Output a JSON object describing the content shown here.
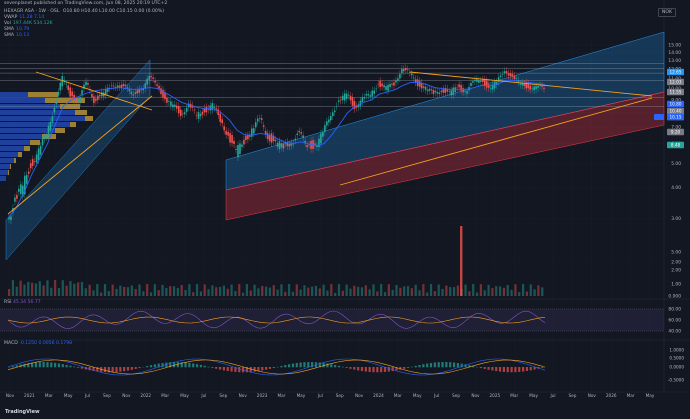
{
  "header": {
    "published": "sevenplanet published on TradingView.com, Jun 08, 2025 20:19 UTC+2",
    "symbol": "HEXAGR ASA · 1W · OSL",
    "ohlc": "O10.80 H10.40 L10.00 C10.15 0.00 (0.00%)",
    "vwap_label": "VWAP",
    "vwap_values": "11.28  7.14",
    "vol_label": "Vol",
    "vol_values": "197.44K  534.12K",
    "sma1_label": "SMA",
    "sma1_value": "10.79",
    "sma2_label": "SMA",
    "sma2_value": "10.13",
    "currency": "NOK",
    "brand": "TradingView"
  },
  "rsi": {
    "label": "RSI",
    "values": "45.34  56.77"
  },
  "macd": {
    "label": "MACD",
    "values": "-0.1250  0.0056  0.1798"
  },
  "colors": {
    "background": "#131722",
    "up": "#26a69a",
    "down": "#ef5350",
    "sma_blue": "#2962ff",
    "trend_orange": "#f7a21b",
    "channel_blue": "#2196f3",
    "channel_red": "#f23645",
    "profile_blue": "#2962ff",
    "profile_yellow": "#f7c744",
    "rsi": "#7e57c2",
    "rsi_signal": "#f7a21b"
  },
  "chart_data": {
    "type": "candlestick",
    "y_axis": {
      "min": 2.0,
      "max": 16.0,
      "scale": "log",
      "ticks": [
        "15.00",
        "14.00",
        "13.00",
        "12.00",
        "11.00",
        "10.00",
        "9.00",
        "8.00",
        "7.00",
        "6.00",
        "5.00",
        "4.00",
        "3.00",
        "2.00"
      ]
    },
    "volume_axis": {
      "ticks": [
        "5.00",
        "2.00",
        "1.00",
        "0.000"
      ]
    },
    "x_ticks": [
      "Nov",
      "2021",
      "Mar",
      "May",
      "Jul",
      "Sep",
      "Nov",
      "2022",
      "Mar",
      "May",
      "Jul",
      "Sep",
      "Nov",
      "2023",
      "Mar",
      "May",
      "Jul",
      "Sep",
      "Nov",
      "2024",
      "Mar",
      "May",
      "Jul",
      "Sep",
      "Nov",
      "2025",
      "Mar",
      "May",
      "Jul",
      "Sep",
      "Nov",
      "2026",
      "Mar",
      "May"
    ],
    "price_tags": [
      {
        "value": "12.65",
        "color": "#2196f3"
      },
      {
        "value": "12.03",
        "color": "#787b86"
      },
      {
        "value": "11.55",
        "color": "#787b86"
      },
      {
        "value": "10.80",
        "color": "#2962ff"
      },
      {
        "value": "10.40",
        "color": "#787b86"
      },
      {
        "value": "10.15",
        "color": "#787b86"
      },
      {
        "value": "10.15",
        "color": "#2962ff"
      },
      {
        "value": "9.20",
        "color": "#787b86"
      },
      {
        "value": "8.48",
        "color": "#26a69a"
      }
    ],
    "close_path": [
      3.1,
      3.5,
      4.0,
      5.0,
      5.5,
      6.5,
      8.5,
      11.0,
      9.5,
      9.0,
      10.5,
      9.0,
      9.5,
      10.0,
      10.5,
      10.0,
      9.5,
      10.0,
      11.0,
      10.5,
      9.0,
      8.5,
      8.0,
      8.5,
      7.8,
      8.2,
      8.5,
      7.5,
      6.5,
      5.5,
      6.2,
      6.8,
      7.5,
      6.5,
      6.0,
      5.8,
      6.2,
      6.5,
      6.0,
      5.9,
      6.5,
      8.0,
      8.8,
      9.5,
      8.5,
      9.0,
      9.5,
      10.5,
      10.0,
      10.5,
      12.0,
      11.5,
      10.5,
      10.0,
      9.5,
      10.0,
      9.5,
      10.2,
      9.8,
      10.5,
      11.0,
      10.0,
      10.5,
      12.0,
      11.0,
      10.5,
      10.2,
      10.0,
      10.15
    ],
    "sma_path": [
      3.0,
      3.3,
      3.8,
      4.5,
      5.2,
      6.0,
      7.2,
      8.5,
      9.0,
      9.3,
      9.6,
      9.8,
      9.9,
      10.0,
      10.1,
      10.0,
      9.9,
      10.0,
      10.1,
      10.0,
      9.6,
      9.2,
      8.8,
      8.6,
      8.4,
      8.3,
      8.3,
      8.0,
      7.5,
      6.8,
      6.5,
      6.5,
      6.6,
      6.5,
      6.3,
      6.1,
      6.0,
      6.1,
      6.0,
      5.9,
      6.0,
      6.5,
      7.2,
      8.0,
      8.5,
      8.8,
      9.0,
      9.5,
      9.7,
      9.9,
      10.3,
      10.6,
      10.6,
      10.4,
      10.1,
      10.0,
      9.9,
      9.9,
      9.9,
      10.1,
      10.3,
      10.3,
      10.4,
      10.8,
      10.8,
      10.7,
      10.6,
      10.5,
      10.4
    ],
    "volume_spike": {
      "index": 50,
      "value": 5.0
    },
    "rsi_axis": {
      "ticks": [
        "80.00",
        "60.00",
        "40.00"
      ]
    },
    "macd_axis": {
      "ticks": [
        "1.0000",
        "0.5000",
        "0.0000",
        "-0.5000"
      ]
    }
  }
}
